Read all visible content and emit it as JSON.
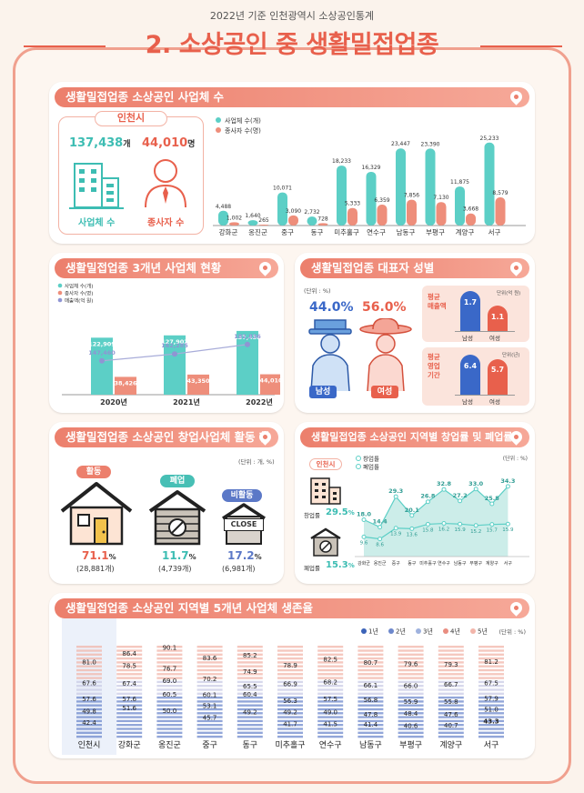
{
  "header": {
    "subtitle": "2022년 기준 인천광역시 소상공인통계",
    "title": "2. 소상공인 중 생활밀접업종"
  },
  "panels": {
    "p1": "생활밀접업종 소상공인 사업체 수",
    "p2": "생활밀접업종 3개년 사업체 현황",
    "p3": "생활밀접업종 대표자 성별",
    "p4": "생활밀접업종 소상공인 창업사업체 활동 현황",
    "p5": "생활밀접업종 소상공인 지역별 창업률 및 폐업률",
    "p6": "생활밀접업종 소상공인 지역별 5개년 사업체 생존율"
  },
  "incheon_box": {
    "label": "인천시",
    "biz_value": "137,438",
    "biz_unit": "개",
    "emp_value": "44,010",
    "emp_unit": "명",
    "biz_caption": "사업체 수",
    "emp_caption": "종사자 수"
  },
  "gender": {
    "unit": "(단위 : %)",
    "male_pct": "44.0%",
    "female_pct": "56.0%",
    "male_label": "남성",
    "female_label": "여성",
    "sales_label": "평균\n매출액",
    "sales_unit": "단위(억 원)",
    "sales_male": "1.7",
    "sales_female": "1.1",
    "period_label": "평균\n영업\n기간",
    "period_unit": "단위(년)",
    "period_male": "6.4",
    "period_female": "5.7"
  },
  "startup_status": {
    "unit": "(단위 : 개, %)",
    "active_label": "활동",
    "active_pct": "71.1",
    "active_cnt": "(28,881개)",
    "closed_label": "폐업",
    "closed_pct": "11.7",
    "closed_cnt": "(4,739개)",
    "inactive_label": "비활동",
    "inactive_pct": "17.2",
    "inactive_cnt": "(6,981개)",
    "close_sign": "CLOSE",
    "pct_sign": "%"
  },
  "rate_side": {
    "label": "인천시",
    "open_label": "창업률",
    "open_val": "29.5",
    "close_label": "폐업률",
    "close_val": "15.3",
    "pct": "%"
  },
  "colors": {
    "teal": "#5ccfc6",
    "coral": "#ee8e7b",
    "purple": "#8f95d3",
    "blue": "#3b63b8",
    "red": "#e06a5c"
  },
  "chart_data": [
    {
      "type": "bar",
      "title": "생활밀접업종 소상공인 사업체 수",
      "categories": [
        "강화군",
        "옹진군",
        "중구",
        "동구",
        "미추홀구",
        "연수구",
        "남동구",
        "부평구",
        "계양구",
        "서구"
      ],
      "series": [
        {
          "name": "사업체 수(개)",
          "values": [
            4488,
            1640,
            10071,
            2732,
            18233,
            16329,
            23447,
            23390,
            11875,
            25233
          ]
        },
        {
          "name": "종사자 수(명)",
          "values": [
            1002,
            265,
            3090,
            728,
            5333,
            6359,
            7856,
            7130,
            3668,
            8579
          ]
        }
      ],
      "labels": [
        [
          "4,488",
          "1,640",
          "10,071",
          "2,732",
          "18,233",
          "16,329",
          "23,447",
          "23,390",
          "11,875",
          "25,233"
        ],
        [
          "1,002",
          "265",
          "3,090",
          "728",
          "5,333",
          "6,359",
          "7,856",
          "7,130",
          "3,668",
          "8,579"
        ]
      ],
      "legend": "top-left"
    },
    {
      "type": "bar",
      "title": "생활밀접업종 3개년 사업체 현황",
      "categories": [
        "2020년",
        "2021년",
        "2022년"
      ],
      "series": [
        {
          "name": "사업체 수(개)",
          "values": [
            122909,
            127902,
            137438
          ],
          "labels": [
            "122,909",
            "127,902",
            "137,438"
          ]
        },
        {
          "name": "종사자 수(명)",
          "values": [
            38426,
            43350,
            44010
          ],
          "labels": [
            "38,426",
            "43,350",
            "44,010"
          ]
        },
        {
          "name": "매출액(억 원)",
          "values": [
            147460,
            162285,
            182836
          ],
          "labels": [
            "147,460",
            "162,285",
            "182,836"
          ]
        }
      ],
      "legend": "top-left"
    },
    {
      "type": "line",
      "title": "생활밀접업종 소상공인 지역별 창업률 및 폐업률",
      "categories": [
        "강화군",
        "옹진군",
        "중구",
        "동구",
        "미추홀구",
        "연수구",
        "남동구",
        "부평구",
        "계양구",
        "서구"
      ],
      "series": [
        {
          "name": "창업률",
          "values": [
            18.0,
            14.4,
            29.3,
            20.1,
            26.8,
            32.8,
            27.2,
            33.0,
            25.8,
            34.3
          ]
        },
        {
          "name": "폐업률",
          "values": [
            9.6,
            8.6,
            13.9,
            13.6,
            15.8,
            16.2,
            15.9,
            15.2,
            15.7,
            15.9
          ]
        }
      ],
      "unit": "(단위 : %)"
    },
    {
      "type": "bar",
      "title": "생활밀접업종 소상공인 지역별 5개년 사업체 생존율",
      "unit": "(단위 : %)",
      "categories": [
        "인천시",
        "강화군",
        "옹진군",
        "중구",
        "동구",
        "미추홀구",
        "연수구",
        "남동구",
        "부평구",
        "계양구",
        "서구"
      ],
      "series": [
        {
          "name": "1년",
          "values": [
            81.0,
            86.4,
            90.1,
            83.6,
            85.2,
            78.9,
            82.5,
            80.7,
            79.6,
            79.3,
            81.2
          ]
        },
        {
          "name": "2년",
          "values": [
            67.6,
            78.5,
            76.7,
            70.2,
            74.9,
            66.9,
            68.2,
            66.1,
            66.0,
            66.7,
            67.5
          ]
        },
        {
          "name": "3년",
          "values": [
            57.6,
            67.4,
            69.0,
            60.1,
            65.5,
            56.3,
            57.5,
            56.8,
            55.9,
            55.8,
            57.9
          ]
        },
        {
          "name": "4년",
          "values": [
            49.8,
            57.6,
            60.5,
            53.1,
            60.4,
            49.2,
            49.0,
            47.8,
            48.4,
            47.6,
            51.0
          ]
        },
        {
          "name": "5년",
          "values": [
            42.4,
            51.6,
            50.0,
            45.7,
            49.2,
            41.7,
            41.5,
            41.4,
            40.6,
            40.7,
            43.3
          ]
        }
      ]
    }
  ]
}
